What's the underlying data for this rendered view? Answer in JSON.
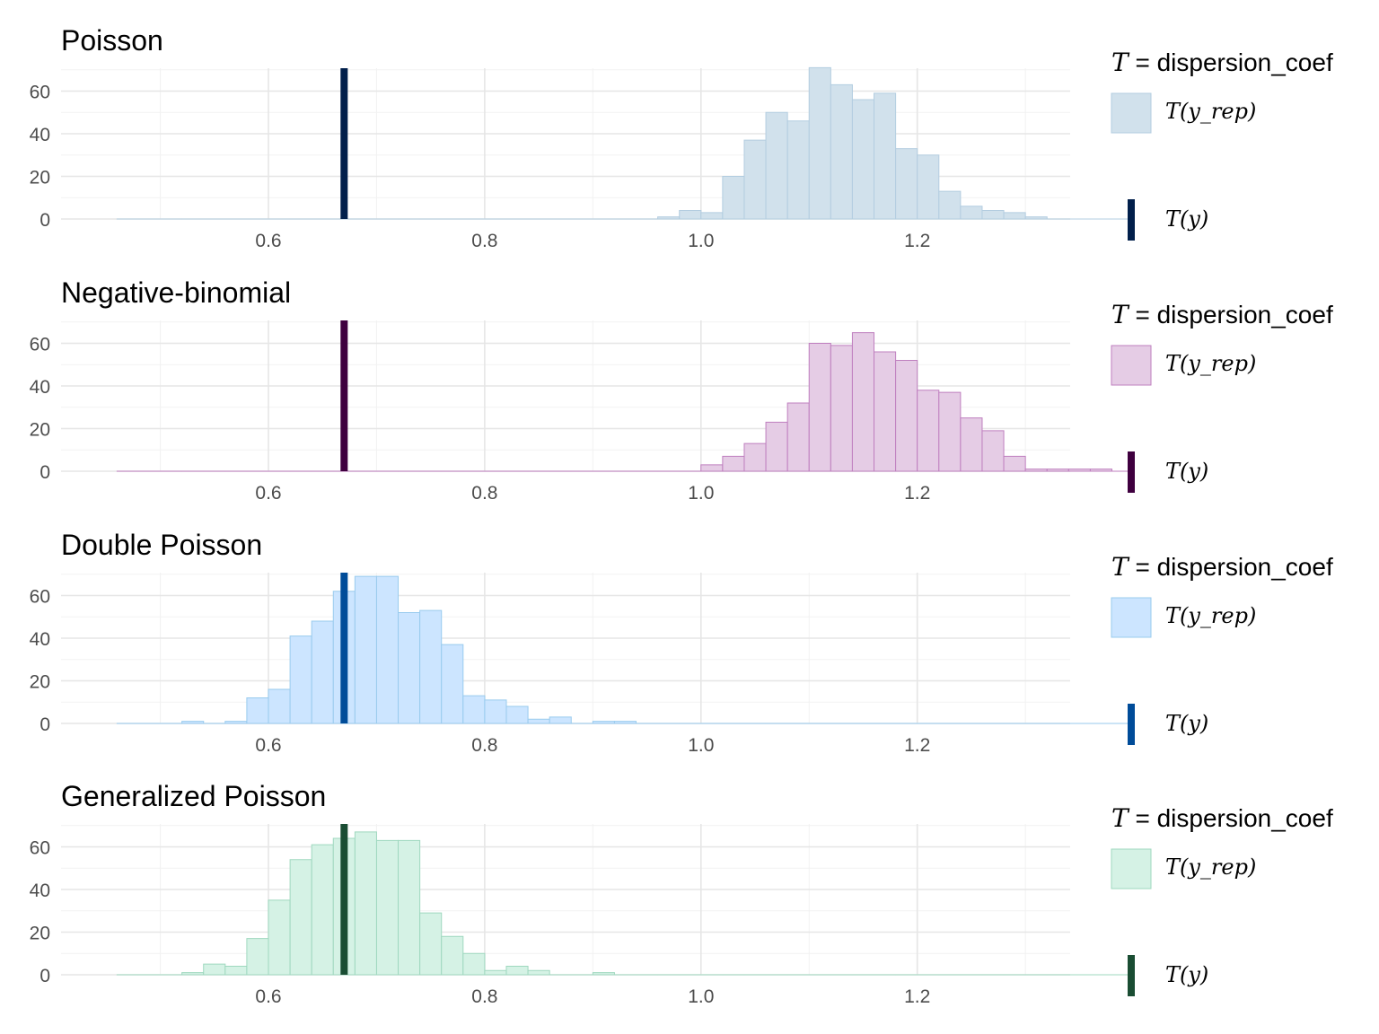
{
  "chart_data": [
    {
      "type": "bar",
      "title": "Poisson",
      "xlabel": "",
      "ylabel": "",
      "xlim": [
        0.44,
        1.3
      ],
      "ylim": [
        0,
        70
      ],
      "x_ticks": [
        "0.6",
        "0.8",
        "1.0",
        "1.2"
      ],
      "y_ticks": [
        "0",
        "20",
        "40",
        "60"
      ],
      "grid": true,
      "legend_position": "right",
      "colors": {
        "fill": "#d1e1ec",
        "stroke": "#b3cde0",
        "observed": "#011f4b"
      },
      "bin_start": 0.46,
      "bin_width": 0.02,
      "counts": [
        0,
        0,
        0,
        0,
        0,
        0,
        0,
        0,
        0,
        0,
        0,
        0,
        0,
        0,
        0,
        0,
        0,
        0,
        0,
        0,
        0,
        0,
        0,
        0,
        0,
        1,
        4,
        3,
        20,
        37,
        50,
        46,
        71,
        63,
        56,
        59,
        33,
        30,
        13,
        6,
        4,
        3,
        1,
        0,
        0,
        0,
        0
      ],
      "observed": 0.67,
      "legend": {
        "title": "T = dispersion_coef",
        "rep_label": "T(y_rep)",
        "obs_label": "T(y)"
      }
    },
    {
      "type": "bar",
      "title": "Negative-binomial",
      "xlabel": "",
      "ylabel": "",
      "xlim": [
        0.44,
        1.3
      ],
      "ylim": [
        0,
        65
      ],
      "x_ticks": [
        "0.6",
        "0.8",
        "1.0",
        "1.2"
      ],
      "y_ticks": [
        "0",
        "20",
        "40",
        "60"
      ],
      "grid": true,
      "legend_position": "right",
      "colors": {
        "fill": "#e5cce5",
        "stroke": "#bf7fbf",
        "observed": "#3f003f"
      },
      "bin_start": 0.46,
      "bin_width": 0.02,
      "counts": [
        0,
        0,
        0,
        0,
        0,
        0,
        0,
        0,
        0,
        0,
        0,
        0,
        0,
        0,
        0,
        0,
        0,
        0,
        0,
        0,
        0,
        0,
        0,
        0,
        0,
        0,
        0,
        3,
        7,
        13,
        23,
        32,
        60,
        59,
        65,
        56,
        52,
        38,
        37,
        25,
        19,
        7,
        1,
        1,
        1,
        1,
        0
      ],
      "observed": 0.67,
      "legend": {
        "title": "T = dispersion_coef",
        "rep_label": "T(y_rep)",
        "obs_label": "T(y)"
      }
    },
    {
      "type": "bar",
      "title": "Double Poisson",
      "xlabel": "",
      "ylabel": "",
      "xlim": [
        0.44,
        1.3
      ],
      "ylim": [
        0,
        69
      ],
      "x_ticks": [
        "0.6",
        "0.8",
        "1.0",
        "1.2"
      ],
      "y_ticks": [
        "0",
        "20",
        "40",
        "60"
      ],
      "grid": true,
      "legend_position": "right",
      "colors": {
        "fill": "#cce5ff",
        "stroke": "#99cbee",
        "observed": "#004c99"
      },
      "bin_start": 0.46,
      "bin_width": 0.02,
      "counts": [
        0,
        0,
        0,
        1,
        0,
        1,
        12,
        16,
        41,
        48,
        62,
        69,
        69,
        52,
        53,
        37,
        13,
        11,
        8,
        2,
        3,
        0,
        1,
        1,
        0,
        0,
        0,
        0,
        0,
        0,
        0,
        0,
        0,
        0,
        0,
        0,
        0,
        0,
        0,
        0,
        0,
        0,
        0,
        0,
        0,
        0,
        0
      ],
      "observed": 0.67,
      "legend": {
        "title": "T = dispersion_coef",
        "rep_label": "T(y_rep)",
        "obs_label": "T(y)"
      }
    },
    {
      "type": "bar",
      "title": "Generalized Poisson",
      "xlabel": "",
      "ylabel": "",
      "xlim": [
        0.44,
        1.3
      ],
      "ylim": [
        0,
        67
      ],
      "x_ticks": [
        "0.6",
        "0.8",
        "1.0",
        "1.2"
      ],
      "y_ticks": [
        "0",
        "20",
        "40",
        "60"
      ],
      "grid": true,
      "legend_position": "right",
      "colors": {
        "fill": "#d5f2e5",
        "stroke": "#9fd8bf",
        "observed": "#1a4d33"
      },
      "bin_start": 0.46,
      "bin_width": 0.02,
      "counts": [
        0,
        0,
        0,
        1,
        5,
        4,
        17,
        35,
        54,
        61,
        64,
        67,
        63,
        63,
        29,
        18,
        10,
        2,
        4,
        2,
        0,
        0,
        1,
        0,
        0,
        0,
        0,
        0,
        0,
        0,
        0,
        0,
        0,
        0,
        0,
        0,
        0,
        0,
        0,
        0,
        0,
        0,
        0,
        0,
        0,
        0,
        0
      ],
      "observed": 0.67,
      "legend": {
        "title": "T = dispersion_coef",
        "rep_label": "T(y_rep)",
        "obs_label": "T(y)"
      }
    }
  ]
}
